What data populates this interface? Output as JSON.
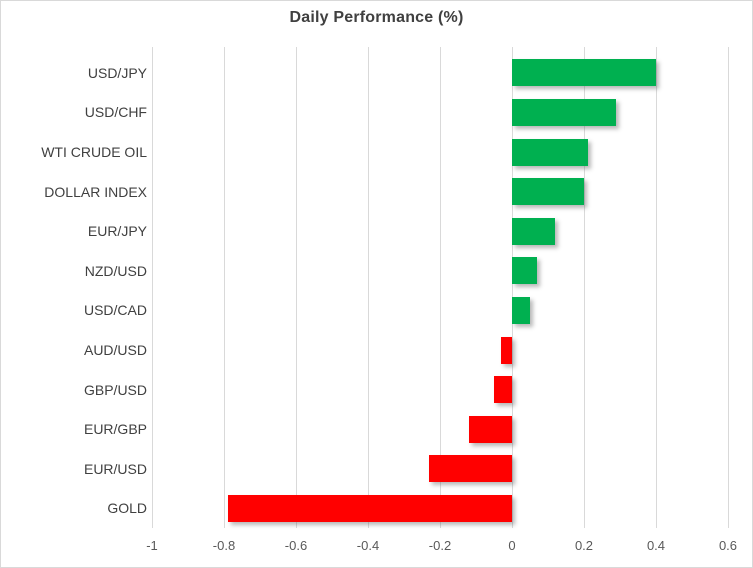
{
  "chart_data": {
    "type": "bar",
    "orientation": "horizontal",
    "title": "Daily Performance (%)",
    "categories": [
      "USD/JPY",
      "USD/CHF",
      "WTI CRUDE OIL",
      "DOLLAR INDEX",
      "EUR/JPY",
      "NZD/USD",
      "USD/CAD",
      "AUD/USD",
      "GBP/USD",
      "EUR/GBP",
      "EUR/USD",
      "GOLD"
    ],
    "values": [
      0.4,
      0.29,
      0.21,
      0.2,
      0.12,
      0.07,
      0.05,
      -0.03,
      -0.05,
      -0.12,
      -0.23,
      -0.79
    ],
    "xlabel": "",
    "ylabel": "",
    "xlim": [
      -1,
      0.6
    ],
    "x_ticks": [
      -1,
      -0.8,
      -0.6,
      -0.4,
      -0.2,
      0,
      0.2,
      0.4,
      0.6
    ],
    "x_tick_labels": [
      "-1",
      "-0.8",
      "-0.6",
      "-0.4",
      "-0.2",
      "0",
      "0.2",
      "0.4",
      "0.6"
    ],
    "grid": true,
    "legend": false,
    "positive_color": "#00B050",
    "negative_color": "#FF0000",
    "gridline_color": "#D9D9D9",
    "title_color": "#404040",
    "label_color": "#404040",
    "tick_color": "#595959"
  }
}
